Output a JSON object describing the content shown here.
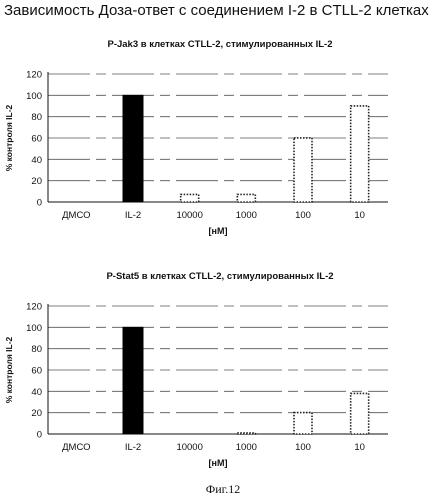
{
  "page": {
    "title": "Зависимость Доза-ответ с соединением I-2 в CTLL-2 клетках",
    "caption": "Фиг.12"
  },
  "chart_data": [
    {
      "type": "bar",
      "title": "P-Jak3 в клетках CTLL-2, стимулированных IL-2",
      "xlabel": "[нМ]",
      "ylabel": "% контроля IL-2",
      "categories": [
        "ДМСО",
        "IL-2",
        "10000",
        "1000",
        "100",
        "10"
      ],
      "values": [
        0,
        100,
        8,
        8,
        61,
        91
      ],
      "ylim": [
        0,
        120
      ],
      "yticks": [
        0,
        20,
        40,
        60,
        80,
        100,
        120
      ],
      "grid": true,
      "bar_styles": [
        "none",
        "solid",
        "dotted",
        "dotted",
        "dotted",
        "dotted"
      ]
    },
    {
      "type": "bar",
      "title": "P-Stat5  в клетках CTLL-2, стимулированных IL-2",
      "xlabel": "[нМ]",
      "ylabel": "% контроля IL-2",
      "categories": [
        "ДМСО",
        "IL-2",
        "10000",
        "1000",
        "100",
        "10"
      ],
      "values": [
        0,
        100,
        0,
        2,
        21,
        39
      ],
      "ylim": [
        0,
        120
      ],
      "yticks": [
        0,
        20,
        40,
        60,
        80,
        100,
        120
      ],
      "grid": true,
      "bar_styles": [
        "none",
        "solid",
        "dotted",
        "dotted",
        "dotted",
        "dotted"
      ]
    }
  ]
}
